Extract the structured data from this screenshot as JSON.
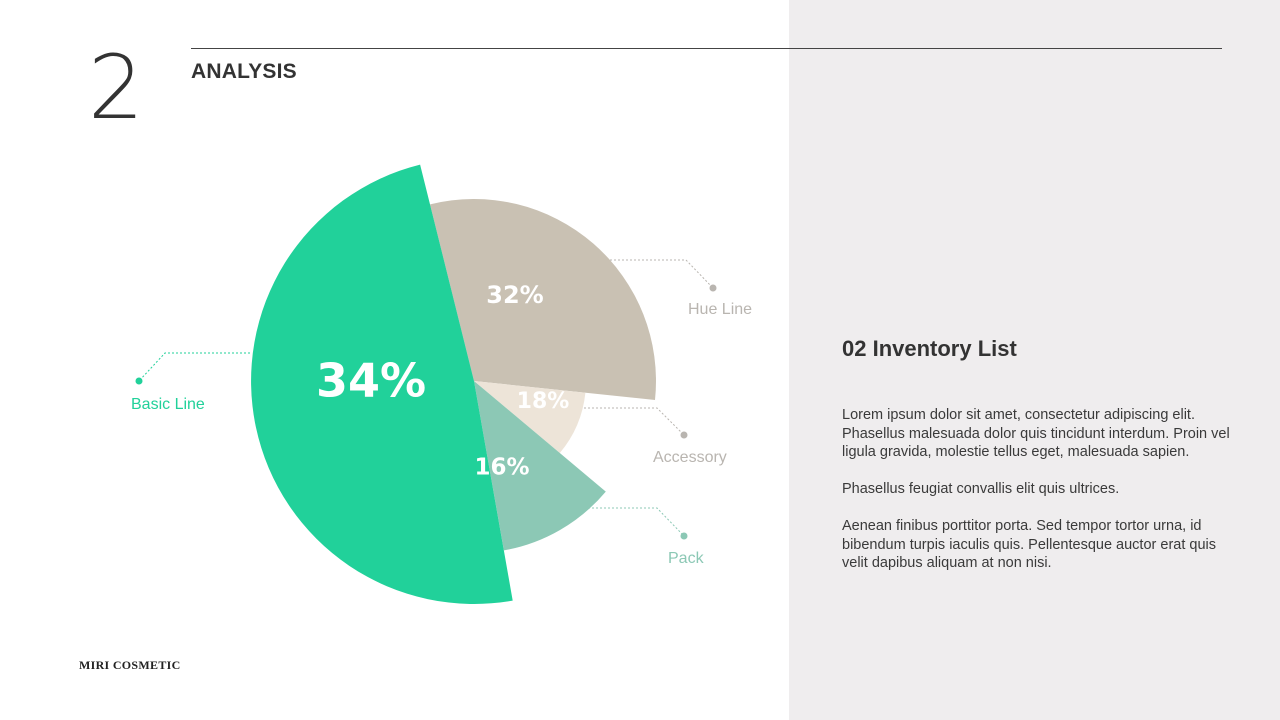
{
  "header": {
    "section_number": "2",
    "section_title": "ANALYSIS"
  },
  "footer": {
    "brand": "MIRI COSMETIC"
  },
  "panel": {
    "heading": "02 Inventory List",
    "paragraphs": [
      "Lorem ipsum dolor sit amet, consectetur adipiscing elit. Phasellus malesuada dolor quis tincidunt interdum. Proin vel ligula gravida, molestie tellus eget, malesuada sapien.",
      "Phasellus feugiat convallis elit quis ultrices.",
      "Aenean finibus porttitor porta. Sed tempor tortor urna, id bibendum turpis iaculis quis. Pellentesque auctor erat quis velit dapibus aliquam at non nisi."
    ]
  },
  "colors": {
    "basic_line": "#21d19a",
    "hue_line": "#c9c1b3",
    "accessory": "#ede4d8",
    "pack": "#8cc8b5",
    "panel_bg": "#efedee"
  },
  "chart_data": {
    "type": "pie",
    "title": "",
    "slices": [
      {
        "label": "Basic Line",
        "value": 34,
        "display": "34%",
        "color": "#21d19a"
      },
      {
        "label": "Hue Line",
        "value": 32,
        "display": "32%",
        "color": "#c9c1b3"
      },
      {
        "label": "Accessory",
        "value": 18,
        "display": "18%",
        "color": "#ede4d8"
      },
      {
        "label": "Pack",
        "value": 16,
        "display": "16%",
        "color": "#8cc8b5"
      }
    ],
    "legend": "callout labels"
  }
}
